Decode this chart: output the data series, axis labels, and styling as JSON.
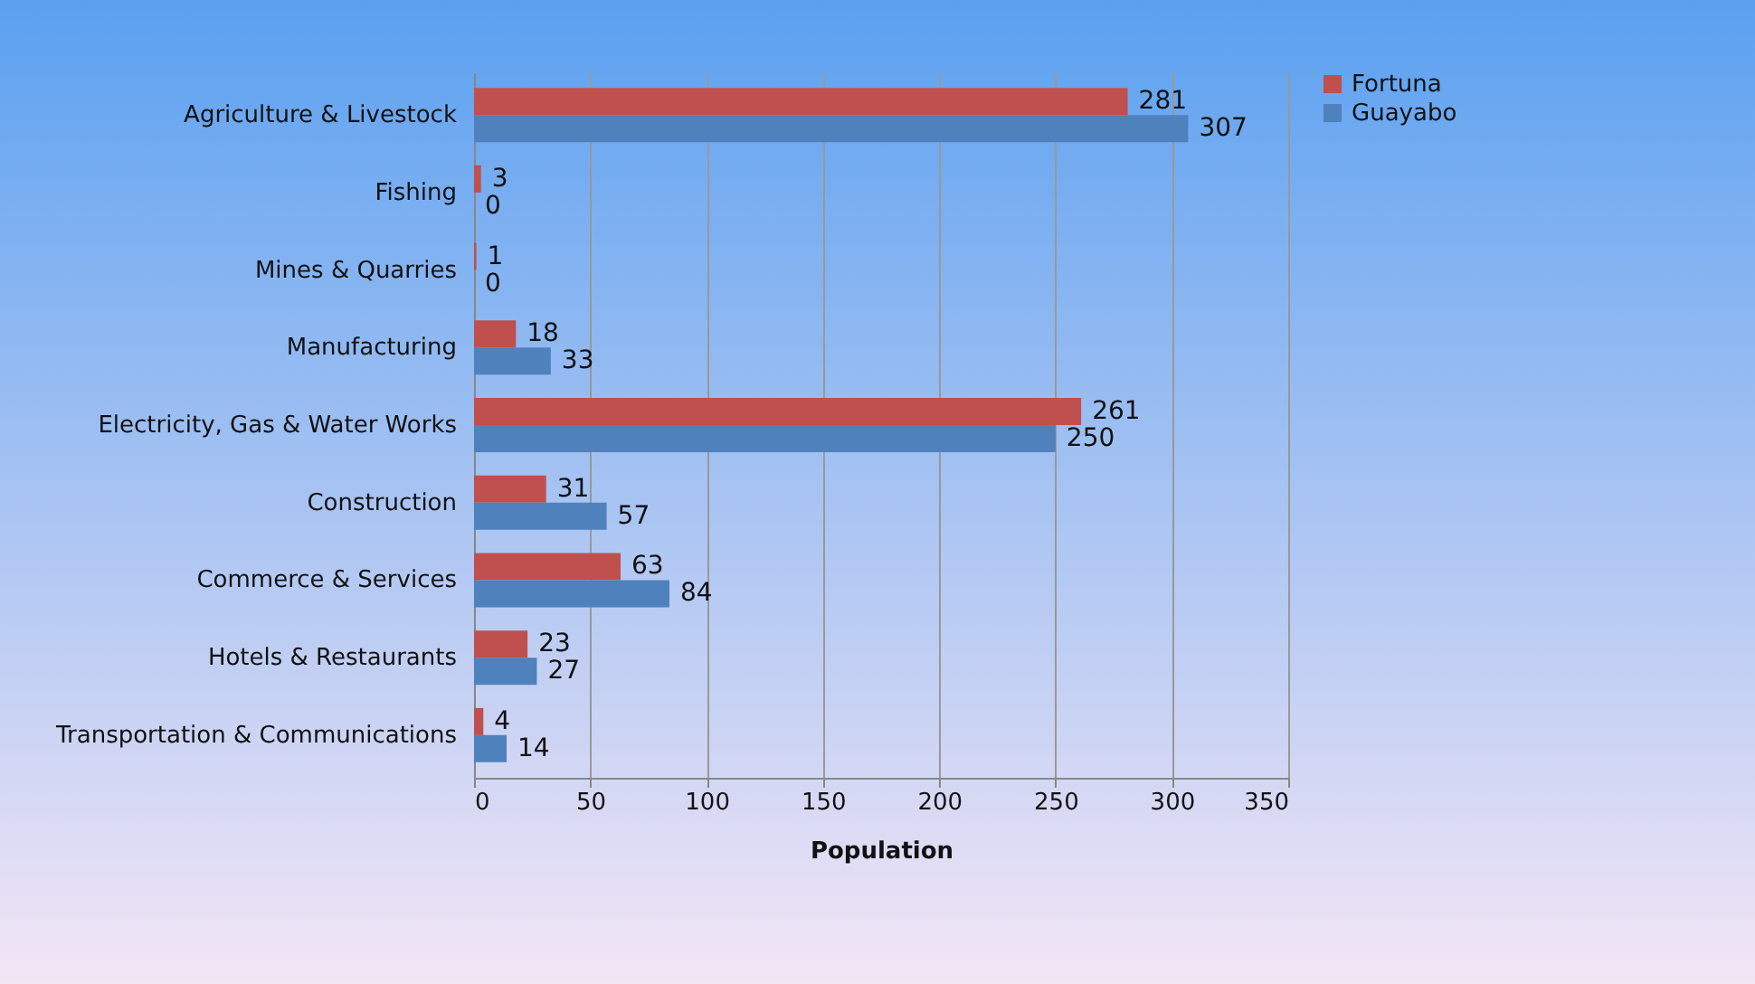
{
  "chart_data": {
    "type": "bar",
    "orientation": "horizontal",
    "xlabel": "Population",
    "categories": [
      "Agriculture & Livestock",
      "Fishing",
      "Mines & Quarries",
      "Manufacturing",
      "Electricity, Gas & Water Works",
      "Construction",
      "Commerce & Services",
      "Hotels & Restaurants",
      "Transportation & Communications"
    ],
    "series": [
      {
        "name": "Fortuna",
        "color": "#c0504d",
        "values": [
          281,
          3,
          1,
          18,
          261,
          31,
          63,
          23,
          4
        ]
      },
      {
        "name": "Guayabo",
        "color": "#4f81bd",
        "values": [
          307,
          0,
          0,
          33,
          250,
          57,
          84,
          27,
          14
        ]
      }
    ],
    "xlim": [
      0,
      350
    ],
    "xticks": [
      0,
      50,
      100,
      150,
      200,
      250,
      300,
      350
    ],
    "grid": "x",
    "legend": "right",
    "data_labels": true
  }
}
